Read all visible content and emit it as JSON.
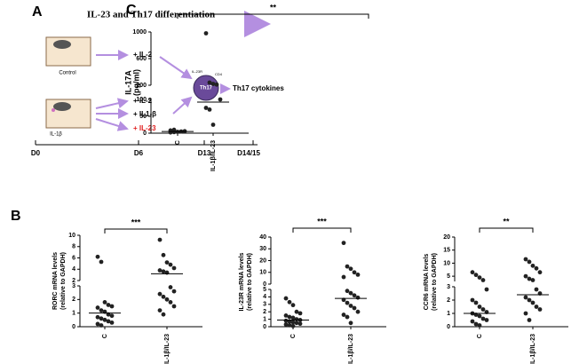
{
  "panel_a": {
    "label": "A",
    "title": "IL-23 and Th17 differentiation",
    "control": "Control",
    "treated": "IL-1β",
    "control_add": "+ IL-2",
    "treated_add": [
      "+ IL-2",
      "+ IL1-β",
      "+ IL-23"
    ],
    "cell": "Th17",
    "receptor": "IL-23R",
    "marker": "CD4",
    "output": "Th17 cytokines",
    "timeline": [
      "D0",
      "D6",
      "D13",
      "D14/15"
    ]
  },
  "panel_b_label": "B",
  "panel_c_label": "C",
  "chart_data": [
    {
      "type": "strip",
      "ylabel": [
        "IL-17A",
        "(pg/ml)"
      ],
      "categories": [
        "C",
        "IL-1β/IL-23"
      ],
      "significance": "**",
      "y_segments": [
        {
          "ylim": [
            0,
            100
          ],
          "yticks": [
            0,
            50,
            100
          ]
        },
        {
          "ylim": [
            200,
            1000
          ],
          "yticks": [
            200,
            600,
            1000
          ]
        }
      ],
      "values": [
        [
          2,
          3,
          4,
          5,
          6,
          8,
          10
        ],
        [
          980,
          240,
          220,
          210,
          100,
          75,
          70,
          25
        ]
      ],
      "means": [
        5,
        92
      ]
    },
    {
      "type": "strip",
      "ylabel": [
        "RORC mRNA levels",
        "(relative to GAPDH)"
      ],
      "categories": [
        "C",
        "IL-1β/IL-23"
      ],
      "significance": "***",
      "y_segments": [
        {
          "ylim": [
            0,
            3
          ],
          "yticks": [
            0,
            1,
            2,
            3
          ]
        },
        {
          "ylim": [
            2,
            10
          ],
          "yticks": [
            2,
            4,
            6,
            8,
            10
          ]
        }
      ],
      "values": [
        [
          6.2,
          5.3,
          1.8,
          1.6,
          1.5,
          1.4,
          1.2,
          1.1,
          0.9,
          0.8,
          0.7,
          0.6,
          0.5,
          0.4,
          0.3,
          0.2,
          0.1
        ],
        [
          9.2,
          6.5,
          5.2,
          4.8,
          4.2,
          3.8,
          3.6,
          3.4,
          2.9,
          2.6,
          2.4,
          2.2,
          2.0,
          1.8,
          1.5,
          1.2,
          0.9
        ]
      ],
      "means": [
        1.0,
        3.2
      ]
    },
    {
      "type": "strip",
      "ylabel": [
        "IL-23R mRNA levels",
        "(relative to GAPDH)"
      ],
      "categories": [
        "C",
        "IL-1β/IL-23"
      ],
      "significance": "***",
      "y_segments": [
        {
          "ylim": [
            0,
            5
          ],
          "yticks": [
            0,
            1,
            2,
            3,
            4,
            5
          ]
        },
        {
          "ylim": [
            0,
            40
          ],
          "yticks": [
            0,
            10,
            20,
            30,
            40
          ]
        }
      ],
      "values": [
        [
          3.8,
          3.3,
          2.9,
          2.0,
          1.8,
          1.5,
          1.3,
          1.2,
          1.0,
          0.9,
          0.8,
          0.7,
          0.6,
          0.5,
          0.4,
          0.3,
          0.2,
          0.1
        ],
        [
          35,
          15,
          13,
          10,
          8,
          6,
          4.8,
          4.5,
          4.2,
          3.9,
          3.6,
          3.2,
          2.8,
          2.5,
          2.0,
          1.6,
          1.3,
          0.5
        ]
      ],
      "means": [
        0.9,
        3.8
      ]
    },
    {
      "type": "strip",
      "ylabel": [
        "CCR6 mRNA levels",
        "(relative to GAPDH)"
      ],
      "categories": [
        "C",
        "IL-1β/IL-23"
      ],
      "significance": "**",
      "y_segments": [
        {
          "ylim": [
            0,
            3
          ],
          "yticks": [
            0,
            1,
            2,
            3
          ]
        },
        {
          "ylim": [
            3,
            20
          ],
          "yticks": [
            5,
            10,
            15,
            20
          ]
        }
      ],
      "values": [
        [
          6.5,
          5.5,
          4.5,
          3.5,
          2.8,
          2.0,
          1.8,
          1.5,
          1.3,
          1.1,
          1.0,
          0.9,
          0.8,
          0.6,
          0.5,
          0.4,
          0.2,
          0.1
        ],
        [
          11.5,
          10.5,
          9,
          8,
          6.5,
          5,
          4,
          3.5,
          2.8,
          2.5,
          2.2,
          2.0,
          1.8,
          1.5,
          1.3,
          1.0,
          0.5
        ]
      ],
      "means": [
        1.0,
        2.4
      ]
    }
  ]
}
